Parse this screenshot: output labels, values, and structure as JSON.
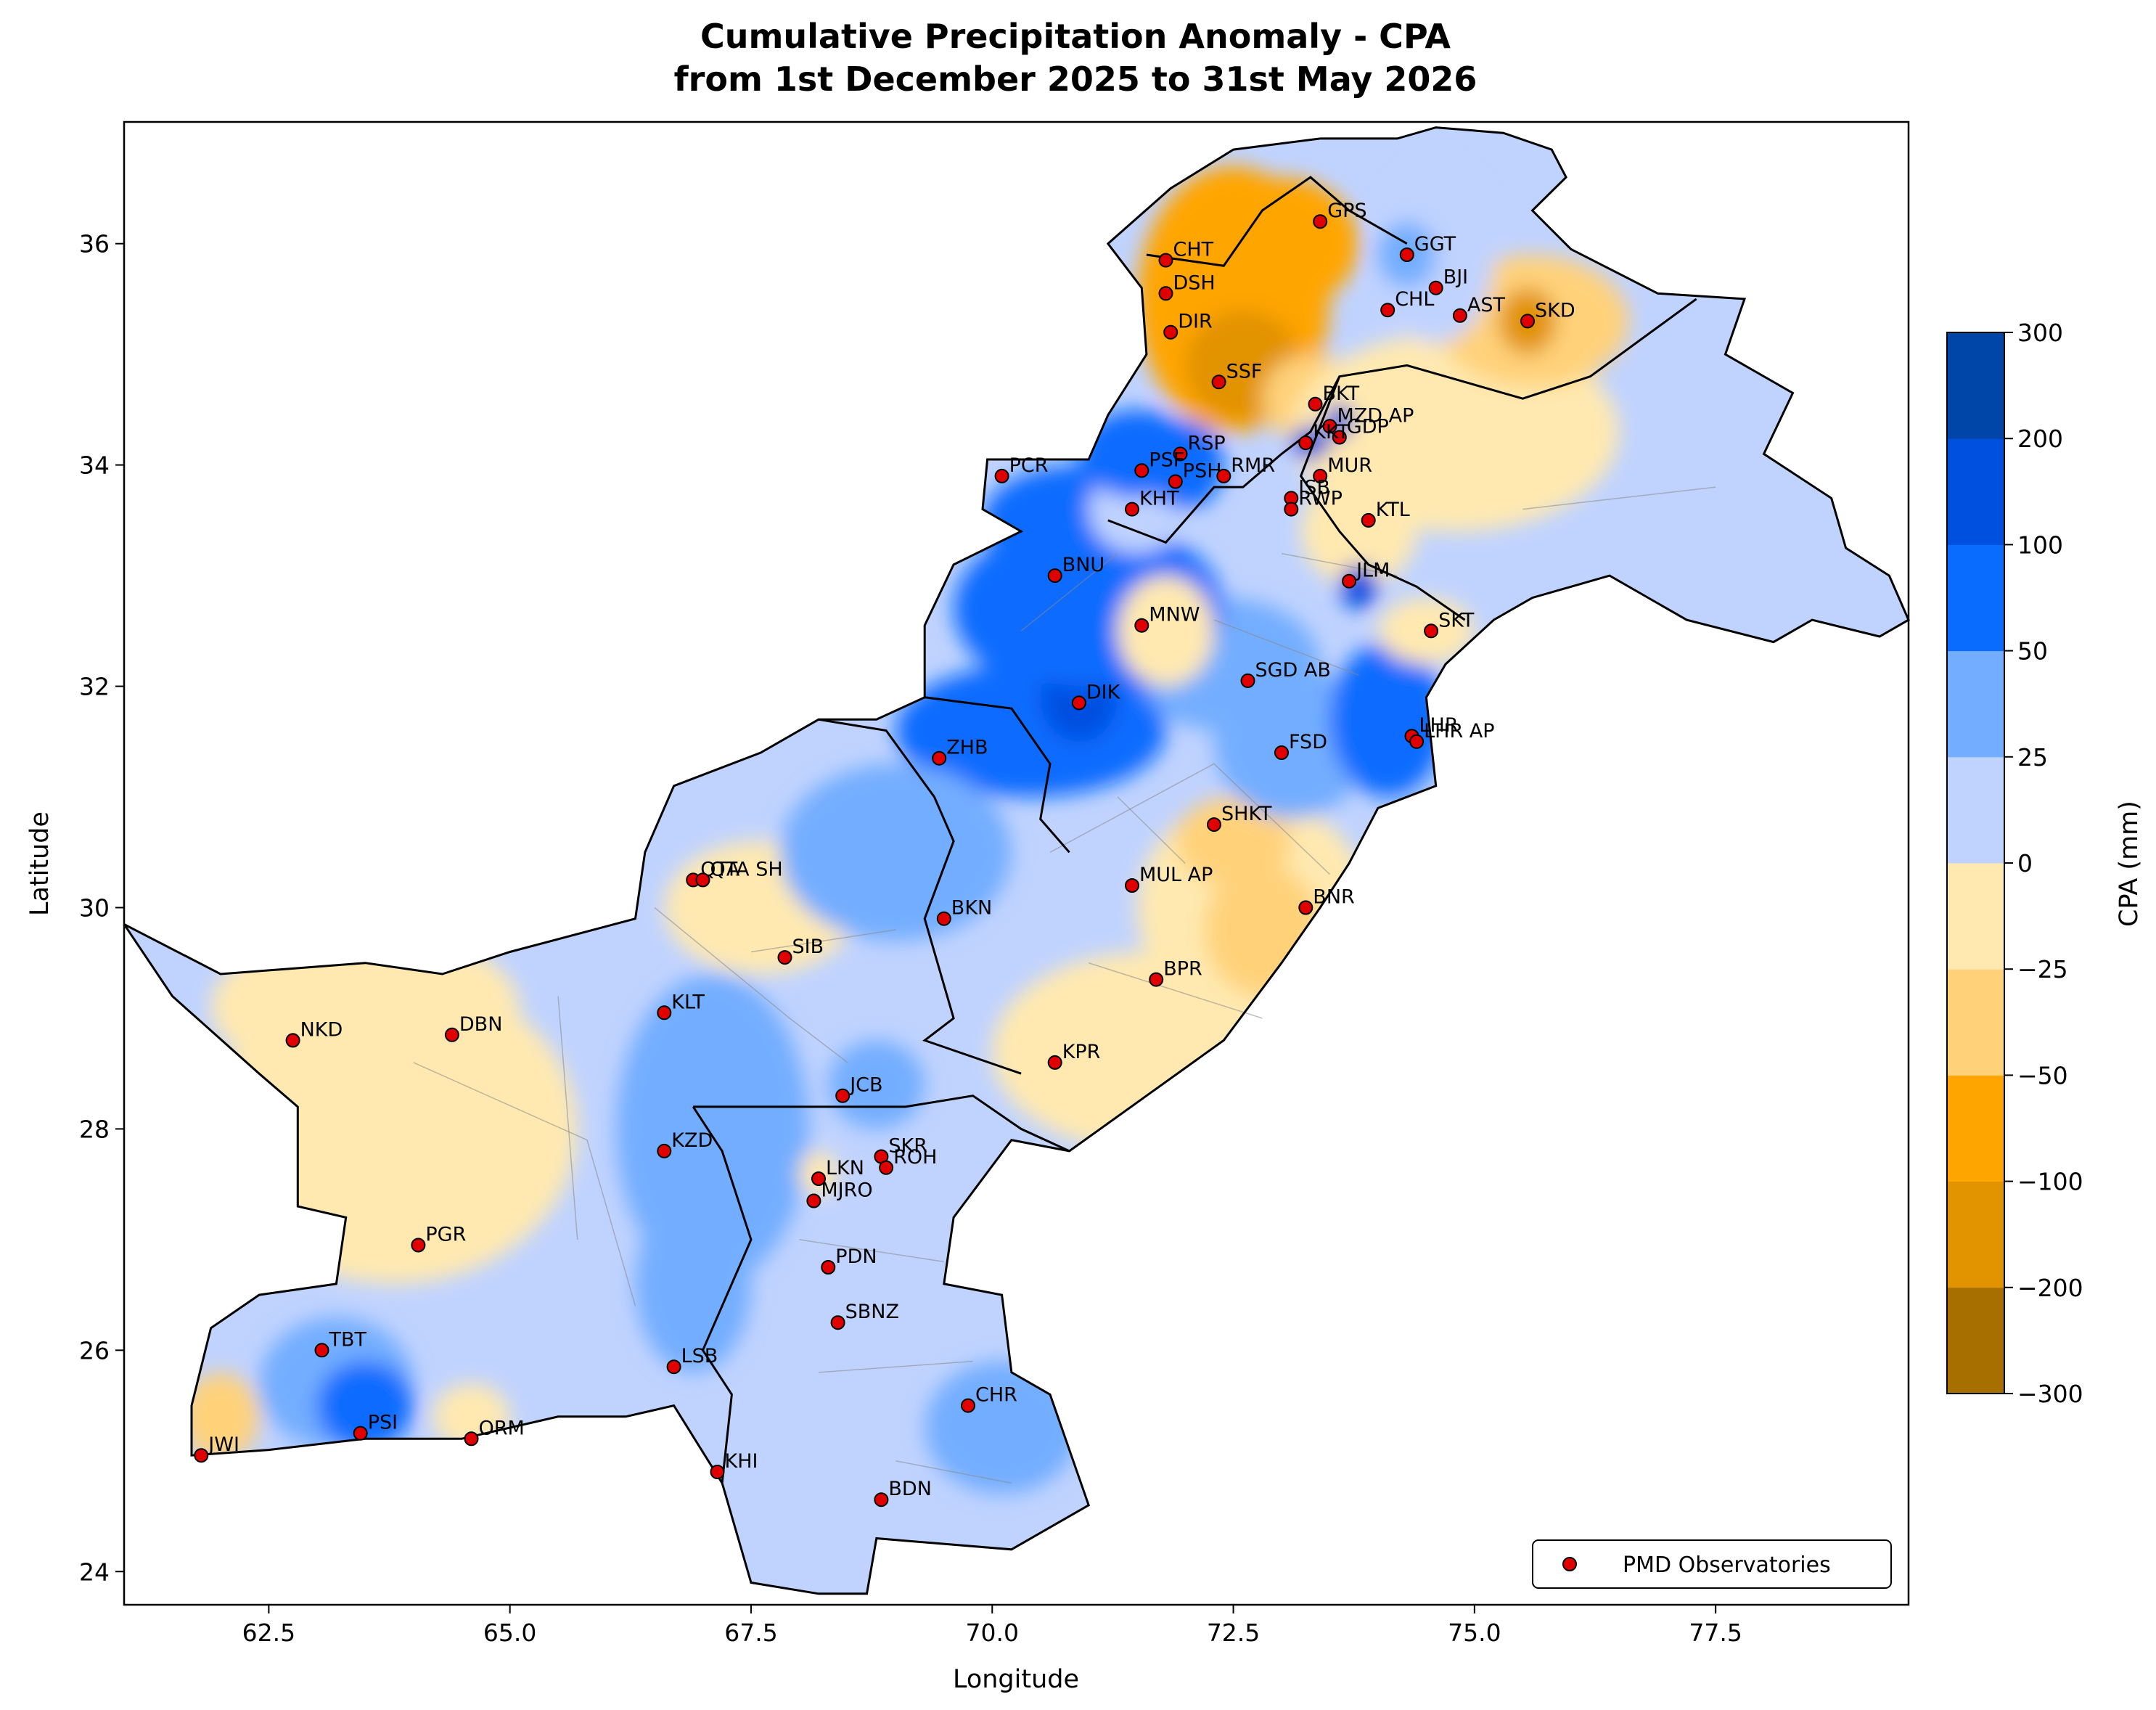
{
  "figure": {
    "title_line1": "Cumulative Precipitation Anomaly - CPA",
    "title_line2": "from 1st December 2025 to 31st May 2026",
    "xlabel": "Longitude",
    "ylabel": "Latitude"
  },
  "axes": {
    "xlim": [
      61.0,
      79.5
    ],
    "ylim": [
      23.7,
      37.1
    ],
    "xticks": [
      62.5,
      65.0,
      67.5,
      70.0,
      72.5,
      75.0,
      77.5
    ],
    "xtick_labels": [
      "62.5",
      "65.0",
      "67.5",
      "70.0",
      "72.5",
      "75.0",
      "77.5"
    ],
    "yticks": [
      24,
      26,
      28,
      30,
      32,
      34,
      36
    ],
    "ytick_labels": [
      "24",
      "26",
      "28",
      "30",
      "32",
      "34",
      "36"
    ]
  },
  "colorbar": {
    "label": "CPA (mm)",
    "levels": [
      -300,
      -200,
      -100,
      -50,
      -25,
      0,
      25,
      50,
      100,
      200,
      300
    ],
    "level_labels": [
      "−300",
      "−200",
      "−100",
      "−50",
      "−25",
      "0",
      "25",
      "50",
      "100",
      "200",
      "300"
    ],
    "colors": [
      "#a66f00",
      "#e29300",
      "#ffa500",
      "#ffd27a",
      "#ffe9b0",
      "#c0d3ff",
      "#73adff",
      "#0a6cff",
      "#0050e0",
      "#0046a8"
    ]
  },
  "legend": {
    "label": "PMD Observatories",
    "position": "lower-right",
    "marker_color": "#e00000"
  },
  "chart_data": {
    "type": "scatter",
    "x_name": "Longitude",
    "y_name": "Latitude",
    "stations": [
      {
        "name": "GPS",
        "lon": 73.4,
        "lat": 36.2
      },
      {
        "name": "GGT",
        "lon": 74.3,
        "lat": 35.9
      },
      {
        "name": "CHT",
        "lon": 71.8,
        "lat": 35.85
      },
      {
        "name": "BJI",
        "lon": 74.6,
        "lat": 35.6
      },
      {
        "name": "DSH",
        "lon": 71.8,
        "lat": 35.55
      },
      {
        "name": "CHL",
        "lon": 74.1,
        "lat": 35.4
      },
      {
        "name": "AST",
        "lon": 74.85,
        "lat": 35.35
      },
      {
        "name": "SKD",
        "lon": 75.55,
        "lat": 35.3
      },
      {
        "name": "DIR",
        "lon": 71.85,
        "lat": 35.2
      },
      {
        "name": "SSF",
        "lon": 72.35,
        "lat": 34.75
      },
      {
        "name": "BKT",
        "lon": 73.35,
        "lat": 34.55
      },
      {
        "name": "MZD AP",
        "lon": 73.5,
        "lat": 34.35
      },
      {
        "name": "GDP",
        "lon": 73.6,
        "lat": 34.25
      },
      {
        "name": "KKT",
        "lon": 73.25,
        "lat": 34.2
      },
      {
        "name": "RSP",
        "lon": 71.95,
        "lat": 34.1
      },
      {
        "name": "PSF",
        "lon": 71.55,
        "lat": 33.95
      },
      {
        "name": "PCR",
        "lon": 70.1,
        "lat": 33.9
      },
      {
        "name": "MUR",
        "lon": 73.4,
        "lat": 33.9
      },
      {
        "name": "PSH",
        "lon": 71.9,
        "lat": 33.85
      },
      {
        "name": "RMR",
        "lon": 72.4,
        "lat": 33.9
      },
      {
        "name": "ISB",
        "lon": 73.1,
        "lat": 33.7
      },
      {
        "name": "RWP",
        "lon": 73.1,
        "lat": 33.6
      },
      {
        "name": "KHT",
        "lon": 71.45,
        "lat": 33.6
      },
      {
        "name": "KTL",
        "lon": 73.9,
        "lat": 33.5
      },
      {
        "name": "BNU",
        "lon": 70.65,
        "lat": 33.0
      },
      {
        "name": "JLM",
        "lon": 73.7,
        "lat": 32.95
      },
      {
        "name": "MNW",
        "lon": 71.55,
        "lat": 32.55
      },
      {
        "name": "SKT",
        "lon": 74.55,
        "lat": 32.5
      },
      {
        "name": "SGD AB",
        "lon": 72.65,
        "lat": 32.05
      },
      {
        "name": "DIK",
        "lon": 70.9,
        "lat": 31.85
      },
      {
        "name": "LHR",
        "lon": 74.35,
        "lat": 31.55
      },
      {
        "name": "LHR AP",
        "lon": 74.4,
        "lat": 31.5
      },
      {
        "name": "FSD",
        "lon": 73.0,
        "lat": 31.4
      },
      {
        "name": "ZHB",
        "lon": 69.45,
        "lat": 31.35
      },
      {
        "name": "SHKT",
        "lon": 72.3,
        "lat": 30.75
      },
      {
        "name": "QTA",
        "lon": 66.9,
        "lat": 30.25
      },
      {
        "name": "QTA SH",
        "lon": 67.0,
        "lat": 30.25
      },
      {
        "name": "MUL AP",
        "lon": 71.45,
        "lat": 30.2
      },
      {
        "name": "BNR",
        "lon": 73.25,
        "lat": 30.0
      },
      {
        "name": "BKN",
        "lon": 69.5,
        "lat": 29.9
      },
      {
        "name": "SIB",
        "lon": 67.85,
        "lat": 29.55
      },
      {
        "name": "BPR",
        "lon": 71.7,
        "lat": 29.35
      },
      {
        "name": "KLT",
        "lon": 66.6,
        "lat": 29.05
      },
      {
        "name": "NKD",
        "lon": 62.75,
        "lat": 28.8
      },
      {
        "name": "DBN",
        "lon": 64.4,
        "lat": 28.85
      },
      {
        "name": "KPR",
        "lon": 70.65,
        "lat": 28.6
      },
      {
        "name": "JCB",
        "lon": 68.45,
        "lat": 28.3
      },
      {
        "name": "KZD",
        "lon": 66.6,
        "lat": 27.8
      },
      {
        "name": "SKR",
        "lon": 68.85,
        "lat": 27.75
      },
      {
        "name": "ROH",
        "lon": 68.9,
        "lat": 27.65
      },
      {
        "name": "LKN",
        "lon": 68.2,
        "lat": 27.55
      },
      {
        "name": "MJRO",
        "lon": 68.15,
        "lat": 27.35
      },
      {
        "name": "PGR",
        "lon": 64.05,
        "lat": 26.95
      },
      {
        "name": "PDN",
        "lon": 68.3,
        "lat": 26.75
      },
      {
        "name": "SBNZ",
        "lon": 68.4,
        "lat": 26.25
      },
      {
        "name": "TBT",
        "lon": 63.05,
        "lat": 26.0
      },
      {
        "name": "LSB",
        "lon": 66.7,
        "lat": 25.85
      },
      {
        "name": "CHR",
        "lon": 69.75,
        "lat": 25.5
      },
      {
        "name": "PSI",
        "lon": 63.45,
        "lat": 25.25
      },
      {
        "name": "ORM",
        "lon": 64.6,
        "lat": 25.2
      },
      {
        "name": "JWI",
        "lon": 61.8,
        "lat": 25.05
      },
      {
        "name": "KHI",
        "lon": 67.15,
        "lat": 24.9
      },
      {
        "name": "BDN",
        "lon": 68.85,
        "lat": 24.65
      }
    ]
  }
}
